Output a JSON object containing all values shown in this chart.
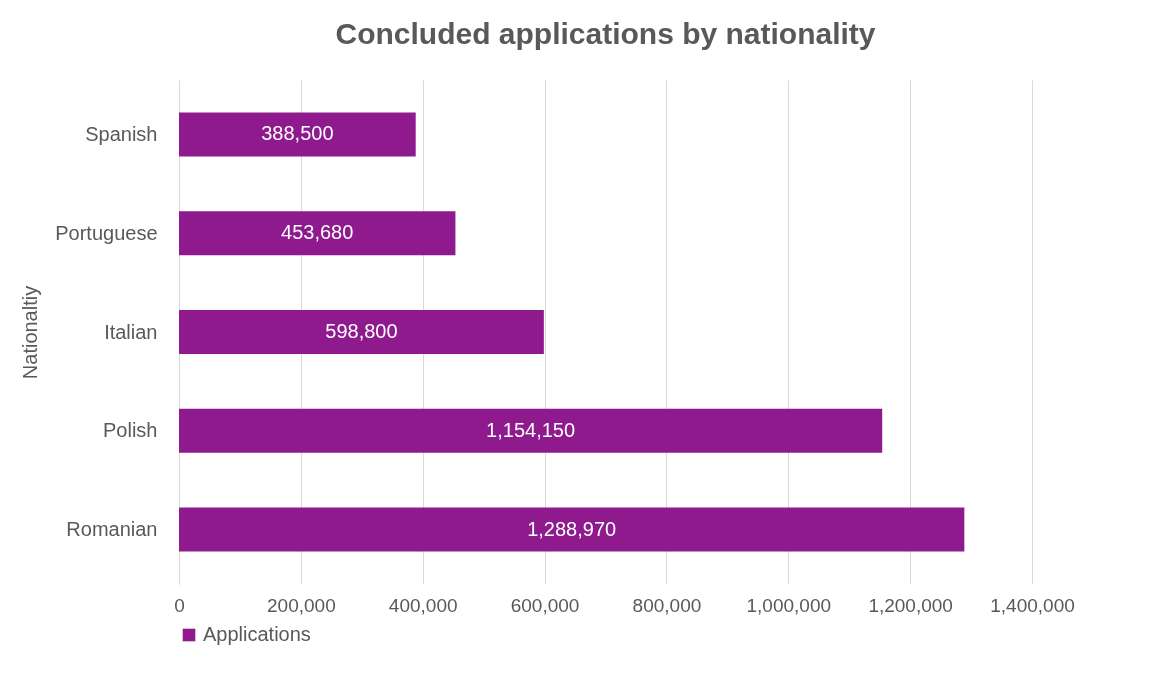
{
  "chart_data": {
    "type": "bar",
    "orientation": "horizontal",
    "title": "Concluded applications by nationality",
    "ylabel": "Nationaltiy",
    "categories": [
      "Spanish",
      "Portuguese",
      "Italian",
      "Polish",
      "Romanian"
    ],
    "series": [
      {
        "name": "Applications",
        "color": "#8e1a8e",
        "values": [
          388500,
          453680,
          598800,
          1154150,
          1288970
        ],
        "value_labels": [
          "388,500",
          "453,680",
          "598,800",
          "1,154,150",
          "1,288,970"
        ]
      }
    ],
    "xlim": [
      0,
      1400000
    ],
    "xticks": [
      0,
      {
        "value": 200000,
        "label": "200,000"
      },
      {
        "value": 400000,
        "label": "400,000"
      },
      {
        "value": 600000,
        "label": "600,000"
      },
      {
        "value": 800000,
        "label": "800,000"
      },
      {
        "value": 1000000,
        "label": "1,000,000"
      },
      {
        "value": 1200000,
        "label": "1,200,000"
      },
      {
        "value": 1400000,
        "label": "1,400,000"
      }
    ],
    "grid": "x",
    "legend": "bottom"
  }
}
